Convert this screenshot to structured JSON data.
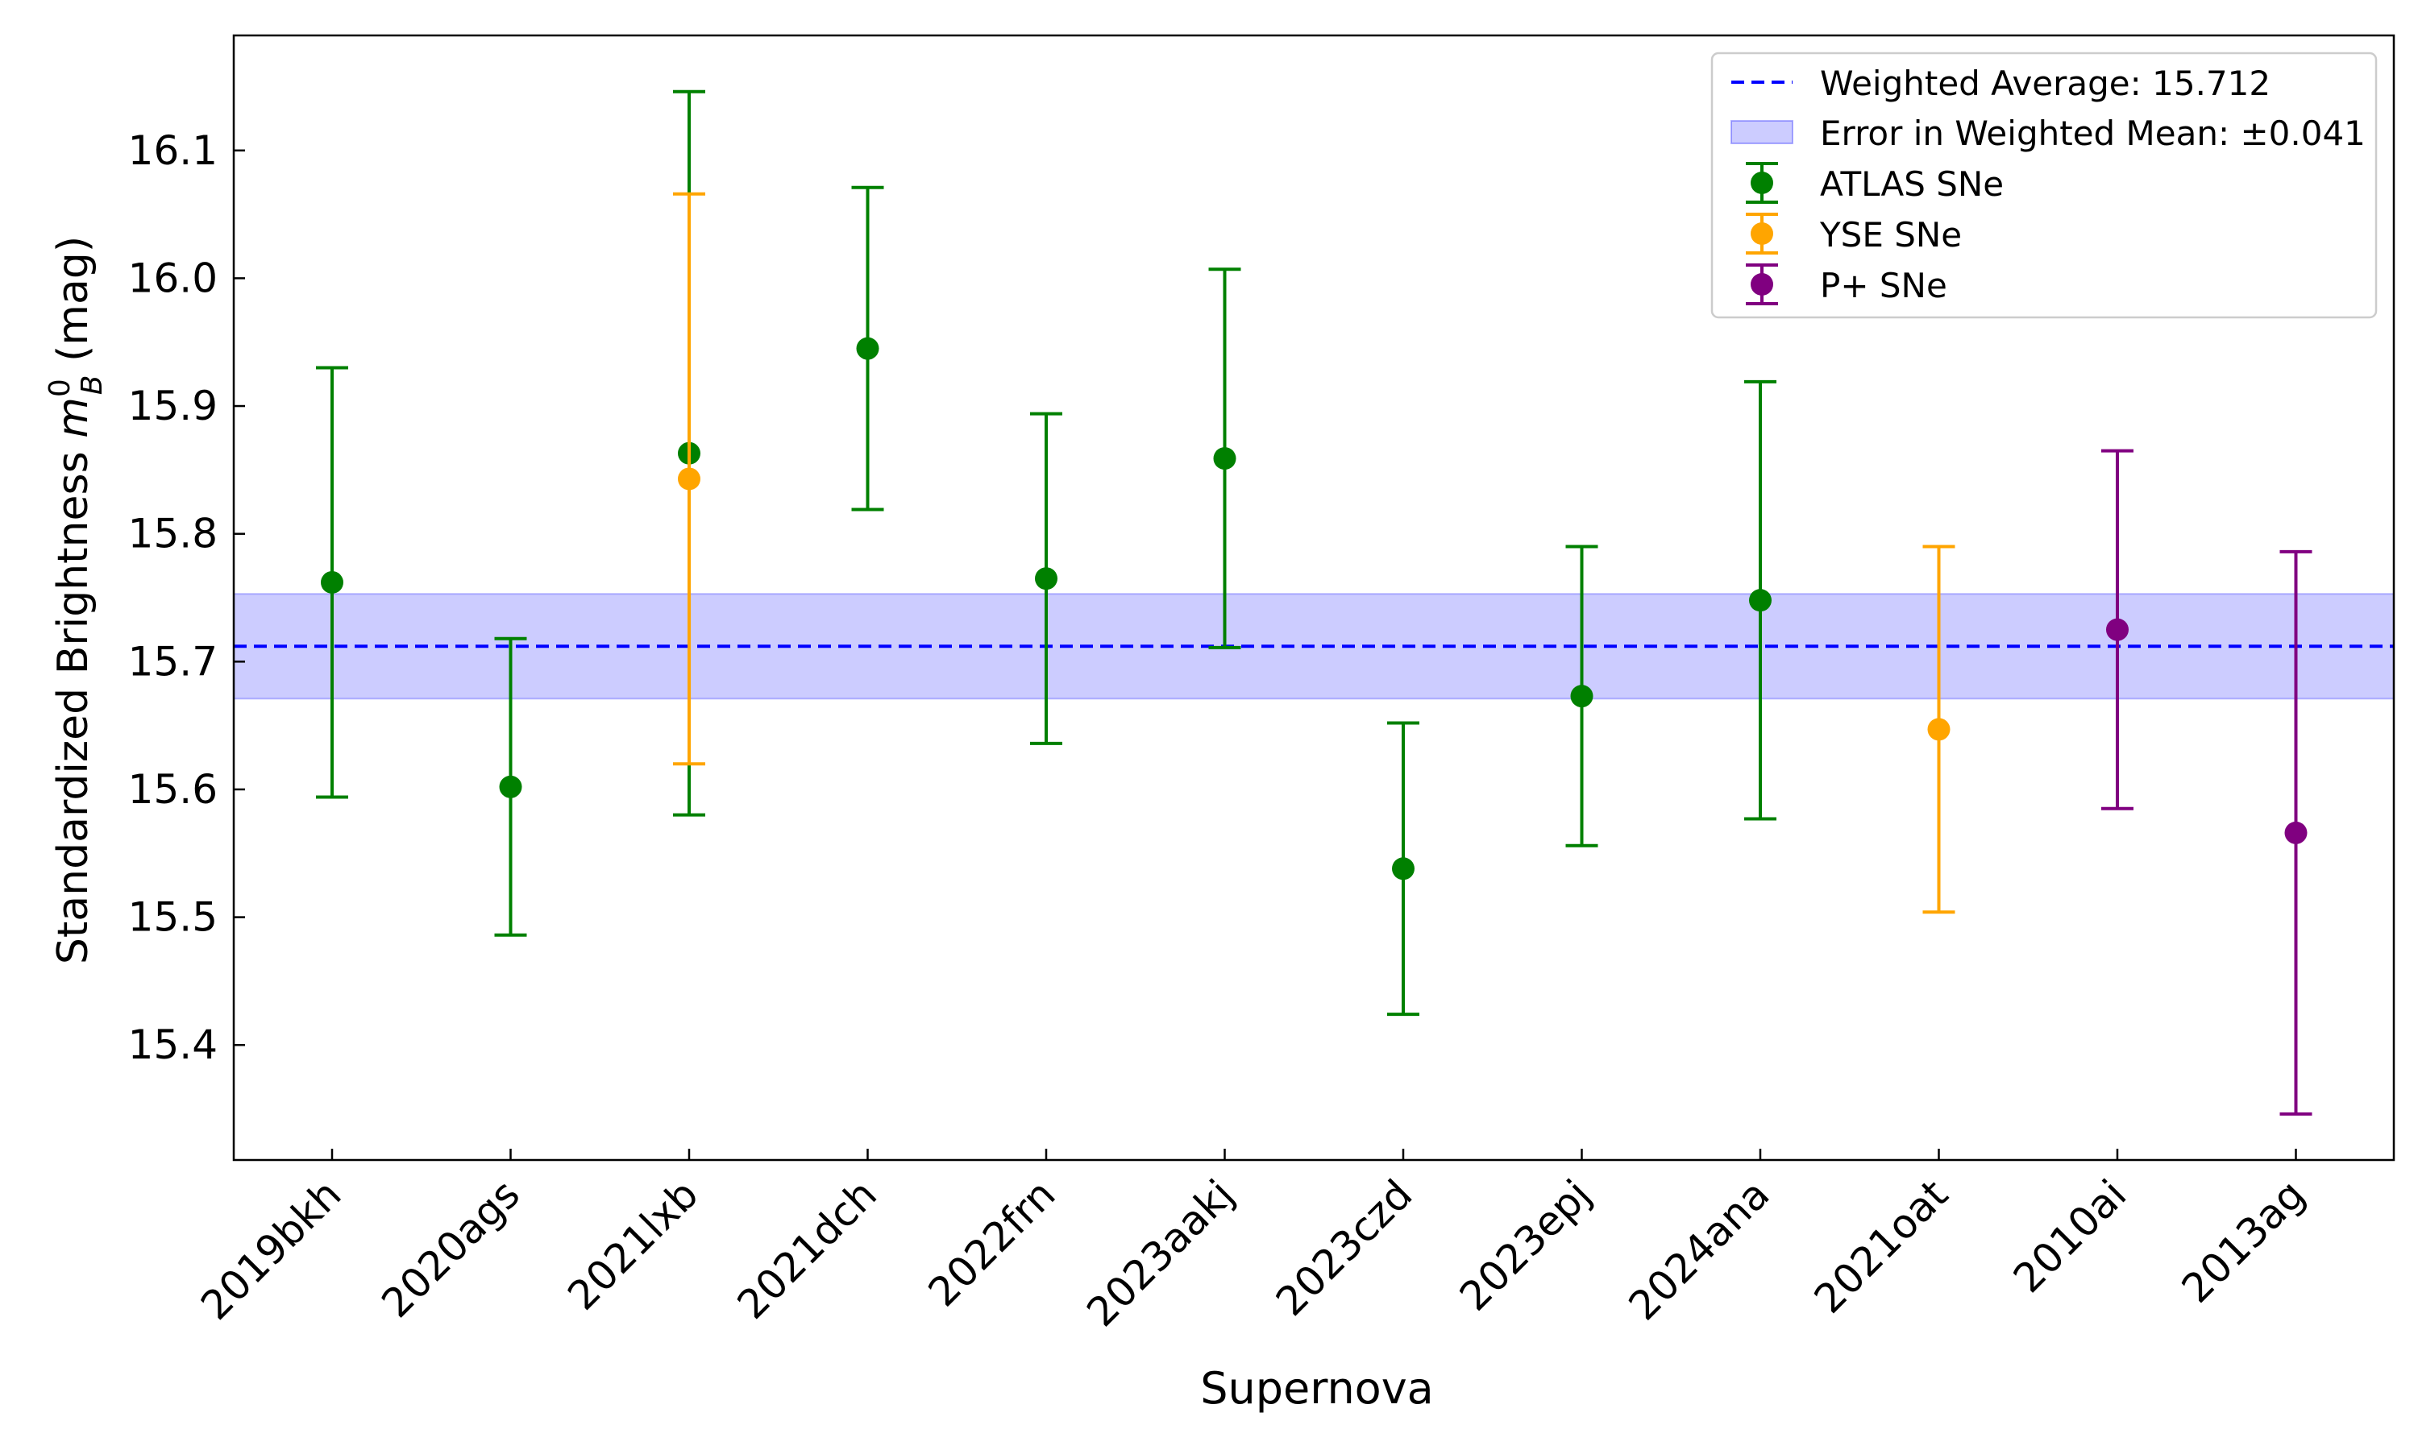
{
  "chart_data": {
    "type": "errorbar",
    "title": "",
    "xlabel": "Supernova",
    "ylabel_prefix": "Standardized Brightness ",
    "ylabel_symbol": "m",
    "ylabel_sup": "0",
    "ylabel_sub": "B",
    "ylabel_suffix": " (mag)",
    "ylim": [
      15.31,
      16.19
    ],
    "yticks": [
      15.4,
      15.5,
      15.6,
      15.7,
      15.8,
      15.9,
      16.0,
      16.1
    ],
    "ytick_labels": [
      "15.4",
      "15.5",
      "15.6",
      "15.7",
      "15.8",
      "15.9",
      "16.0",
      "16.1"
    ],
    "categories": [
      "2019bkh",
      "2020ags",
      "2021lxb",
      "2021dch",
      "2022frn",
      "2023aakj",
      "2023czd",
      "2023epj",
      "2024ana",
      "2021oat",
      "2010ai",
      "2013ag"
    ],
    "series": [
      {
        "name": "ATLAS SNe",
        "color": "#008000",
        "points": [
          {
            "category": "2019bkh",
            "value": 15.762,
            "err": 0.168
          },
          {
            "category": "2020ags",
            "value": 15.602,
            "err": 0.116
          },
          {
            "category": "2021lxb",
            "value": 15.863,
            "err": 0.283
          },
          {
            "category": "2021dch",
            "value": 15.945,
            "err": 0.126
          },
          {
            "category": "2022frn",
            "value": 15.765,
            "err": 0.129
          },
          {
            "category": "2023aakj",
            "value": 15.859,
            "err": 0.148
          },
          {
            "category": "2023czd",
            "value": 15.538,
            "err": 0.114
          },
          {
            "category": "2023epj",
            "value": 15.673,
            "err": 0.117
          },
          {
            "category": "2024ana",
            "value": 15.748,
            "err": 0.171
          }
        ]
      },
      {
        "name": "YSE SNe",
        "color": "#ffa500",
        "points": [
          {
            "category": "2021lxb",
            "value": 15.843,
            "err": 0.223
          },
          {
            "category": "2021oat",
            "value": 15.647,
            "err": 0.143
          }
        ]
      },
      {
        "name": "P+ SNe",
        "color": "#800080",
        "points": [
          {
            "category": "2010ai",
            "value": 15.725,
            "err": 0.14
          },
          {
            "category": "2013ag",
            "value": 15.566,
            "err": 0.22
          }
        ]
      }
    ],
    "weighted_average": {
      "value": 15.712,
      "error": 0.041,
      "line_color": "#0000ff",
      "band_color": "#0000ff"
    },
    "legend": {
      "position": "top-right",
      "entries": [
        "Weighted Average: 15.712",
        "Error in Weighted Mean: ±0.041",
        "ATLAS SNe",
        "YSE SNe",
        "P+ SNe"
      ]
    }
  }
}
